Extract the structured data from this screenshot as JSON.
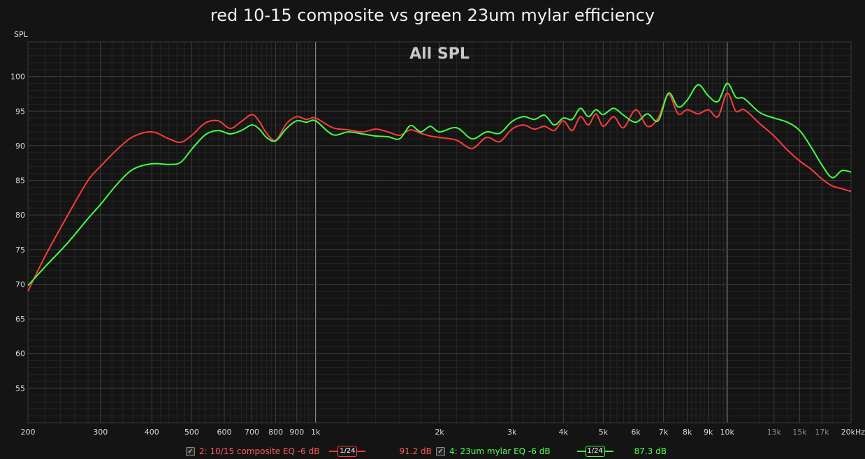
{
  "title": "red 10-15 composite vs green 23um mylar efficiency",
  "chart_data": {
    "type": "line",
    "title": "red 10-15 composite vs green 23um mylar efficiency",
    "overlay_label": "All SPL",
    "ylabel": "SPL",
    "xlabel": "",
    "x_scale": "log",
    "xlim": [
      200,
      20000
    ],
    "ylim": [
      50,
      105
    ],
    "grid": true,
    "x_ticks": [
      {
        "v": 200,
        "label": "200"
      },
      {
        "v": 300,
        "label": "300"
      },
      {
        "v": 400,
        "label": "400"
      },
      {
        "v": 500,
        "label": "500"
      },
      {
        "v": 600,
        "label": "600"
      },
      {
        "v": 700,
        "label": "700"
      },
      {
        "v": 800,
        "label": "800"
      },
      {
        "v": 900,
        "label": "900"
      },
      {
        "v": 1000,
        "label": "1k"
      },
      {
        "v": 2000,
        "label": "2k"
      },
      {
        "v": 3000,
        "label": "3k"
      },
      {
        "v": 4000,
        "label": "4k"
      },
      {
        "v": 5000,
        "label": "5k"
      },
      {
        "v": 6000,
        "label": "6k"
      },
      {
        "v": 7000,
        "label": "7k"
      },
      {
        "v": 8000,
        "label": "8k"
      },
      {
        "v": 9000,
        "label": "9k"
      },
      {
        "v": 10000,
        "label": "10k"
      },
      {
        "v": 13000,
        "label": "13k"
      },
      {
        "v": 15000,
        "label": "15k"
      },
      {
        "v": 17000,
        "label": "17k"
      },
      {
        "v": 20000,
        "label": "20kHz"
      }
    ],
    "y_ticks": [
      55,
      60,
      65,
      70,
      75,
      80,
      85,
      90,
      95,
      100
    ],
    "series": [
      {
        "name": "2: 10/15 composite EQ -6 dB",
        "color": "#ff3b3b",
        "x": [
          200,
          220,
          250,
          280,
          300,
          330,
          360,
          400,
          440,
          470,
          500,
          540,
          580,
          620,
          660,
          700,
          730,
          760,
          800,
          850,
          900,
          950,
          1000,
          1100,
          1200,
          1300,
          1400,
          1500,
          1600,
          1700,
          1800,
          1900,
          2000,
          2200,
          2400,
          2600,
          2800,
          3000,
          3200,
          3400,
          3600,
          3800,
          4000,
          4200,
          4400,
          4600,
          4800,
          5000,
          5300,
          5600,
          6000,
          6400,
          6800,
          7200,
          7600,
          8000,
          8500,
          9000,
          9500,
          10000,
          10500,
          11000,
          12000,
          13000,
          14000,
          15000,
          16000,
          17000,
          18000,
          19000,
          20000
        ],
        "values": [
          69.0,
          74.0,
          80.0,
          85.0,
          87.0,
          89.5,
          91.3,
          92.0,
          91.0,
          90.5,
          91.5,
          93.3,
          93.6,
          92.5,
          93.5,
          94.5,
          93.5,
          91.8,
          90.8,
          93.2,
          94.2,
          93.8,
          94.0,
          92.6,
          92.3,
          92.0,
          92.4,
          92.0,
          91.5,
          92.3,
          91.8,
          91.4,
          91.2,
          90.8,
          89.6,
          91.2,
          90.6,
          92.4,
          93.0,
          92.4,
          92.8,
          92.2,
          93.6,
          92.2,
          94.2,
          93.0,
          94.6,
          92.8,
          94.2,
          92.6,
          95.2,
          92.8,
          94.0,
          97.4,
          94.6,
          95.2,
          94.6,
          95.2,
          94.2,
          97.6,
          95.0,
          95.2,
          93.2,
          91.4,
          89.4,
          87.8,
          86.6,
          85.2,
          84.2,
          83.8,
          83.4
        ]
      },
      {
        "name": "4: 23um mylar EQ -6 dB",
        "color": "#45ff45",
        "x": [
          200,
          220,
          250,
          280,
          300,
          330,
          360,
          400,
          440,
          470,
          500,
          540,
          580,
          620,
          660,
          700,
          730,
          760,
          800,
          850,
          900,
          950,
          1000,
          1100,
          1200,
          1300,
          1400,
          1500,
          1600,
          1700,
          1800,
          1900,
          2000,
          2200,
          2400,
          2600,
          2800,
          3000,
          3200,
          3400,
          3600,
          3800,
          4000,
          4200,
          4400,
          4600,
          4800,
          5000,
          5300,
          5600,
          6000,
          6400,
          6800,
          7200,
          7600,
          8000,
          8500,
          9000,
          9500,
          10000,
          10500,
          11000,
          12000,
          13000,
          14000,
          15000,
          16000,
          17000,
          18000,
          19000,
          20000
        ],
        "values": [
          69.8,
          72.5,
          76.0,
          79.5,
          81.5,
          84.5,
          86.6,
          87.4,
          87.3,
          87.6,
          89.5,
          91.6,
          92.2,
          91.7,
          92.2,
          93.0,
          92.4,
          91.2,
          90.7,
          92.5,
          93.6,
          93.4,
          93.6,
          91.6,
          92.0,
          91.7,
          91.4,
          91.3,
          91.0,
          92.9,
          92.0,
          92.8,
          92.0,
          92.6,
          91.0,
          92.0,
          91.8,
          93.5,
          94.2,
          93.8,
          94.4,
          93.0,
          94.0,
          93.8,
          95.4,
          94.2,
          95.2,
          94.5,
          95.4,
          94.4,
          93.4,
          94.6,
          93.6,
          97.6,
          95.6,
          96.6,
          98.8,
          97.2,
          96.4,
          99.0,
          97.0,
          96.8,
          94.8,
          94.0,
          93.4,
          92.2,
          89.8,
          87.2,
          85.4,
          86.4,
          86.2
        ]
      }
    ]
  },
  "legend": {
    "items": [
      {
        "checked": "✓",
        "label": "2: 10/15 composite EQ -6 dB",
        "smoothing": "1/24",
        "value": "91.2 dB",
        "color": "#ff3b3b"
      },
      {
        "checked": "✓",
        "label": "4: 23um mylar EQ -6 dB",
        "smoothing": "1/24",
        "value": "87.3 dB",
        "color": "#45ff45"
      }
    ]
  }
}
